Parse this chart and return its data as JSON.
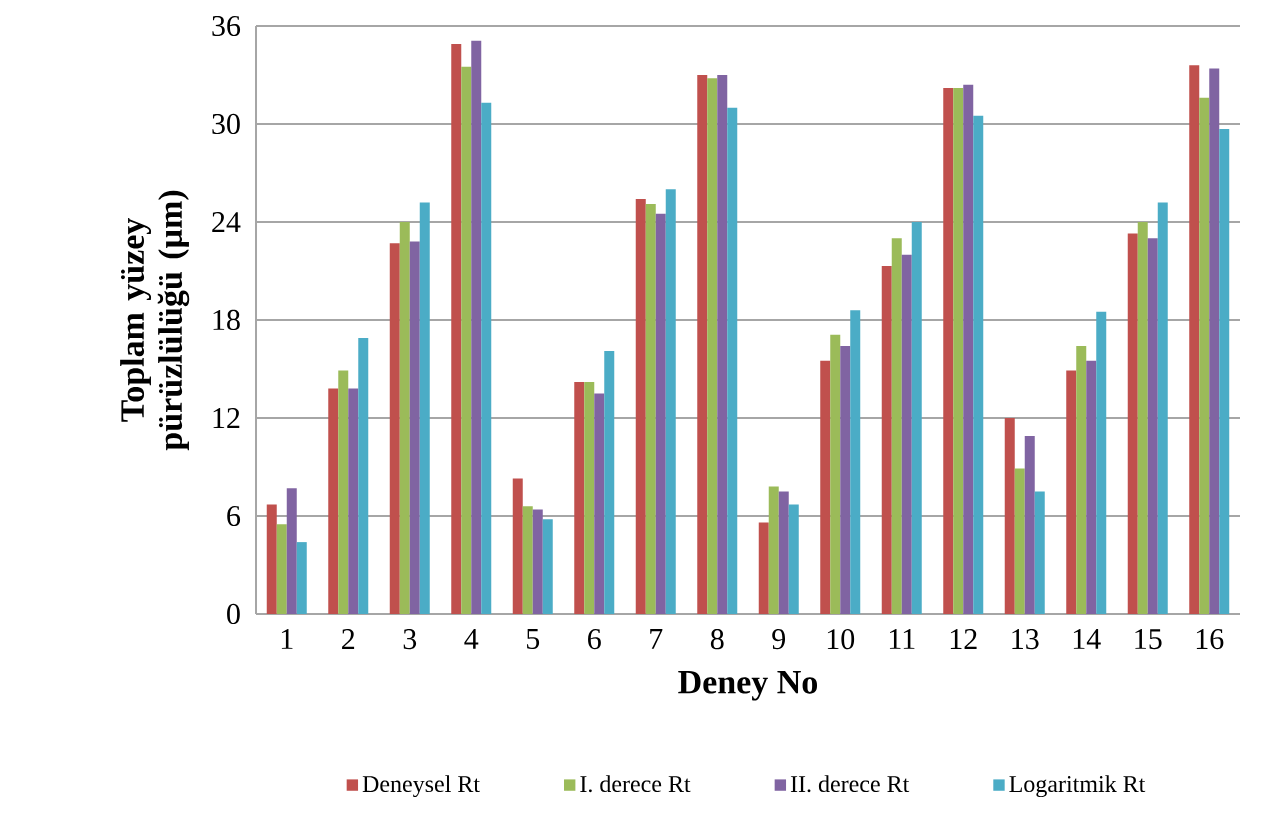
{
  "chart_data": {
    "type": "bar",
    "xlabel": "Deney No",
    "ylabel": "Toplam yüzey pürüzlülüğü (µm)",
    "categories": [
      "1",
      "2",
      "3",
      "4",
      "5",
      "6",
      "7",
      "8",
      "9",
      "10",
      "11",
      "12",
      "13",
      "14",
      "15",
      "16"
    ],
    "series": [
      {
        "name": "Deneysel Rt",
        "color": "#c0504d",
        "values": [
          6.7,
          13.8,
          22.7,
          34.9,
          8.3,
          14.2,
          25.4,
          33.0,
          5.6,
          15.5,
          21.3,
          32.2,
          12.0,
          14.9,
          23.3,
          33.6
        ]
      },
      {
        "name": "I. derece Rt",
        "color": "#9bbb59",
        "values": [
          5.5,
          14.9,
          24.0,
          33.5,
          6.6,
          14.2,
          25.1,
          32.8,
          7.8,
          17.1,
          23.0,
          32.2,
          8.9,
          16.4,
          24.0,
          31.6
        ]
      },
      {
        "name": "II. derece Rt",
        "color": "#8064a2",
        "values": [
          7.7,
          13.8,
          22.8,
          35.1,
          6.4,
          13.5,
          24.5,
          33.0,
          7.5,
          16.4,
          22.0,
          32.4,
          10.9,
          15.5,
          23.0,
          33.4
        ]
      },
      {
        "name": "Logaritmik Rt",
        "color": "#4bacc6",
        "values": [
          4.4,
          16.9,
          25.2,
          31.3,
          5.8,
          16.1,
          26.0,
          31.0,
          6.7,
          18.6,
          24.0,
          30.5,
          7.5,
          18.5,
          25.2,
          29.7
        ]
      }
    ],
    "ylim": [
      0,
      36
    ],
    "yticks": [
      0,
      6,
      12,
      18,
      24,
      30,
      36
    ],
    "grid": "y",
    "legend": "bottom"
  }
}
